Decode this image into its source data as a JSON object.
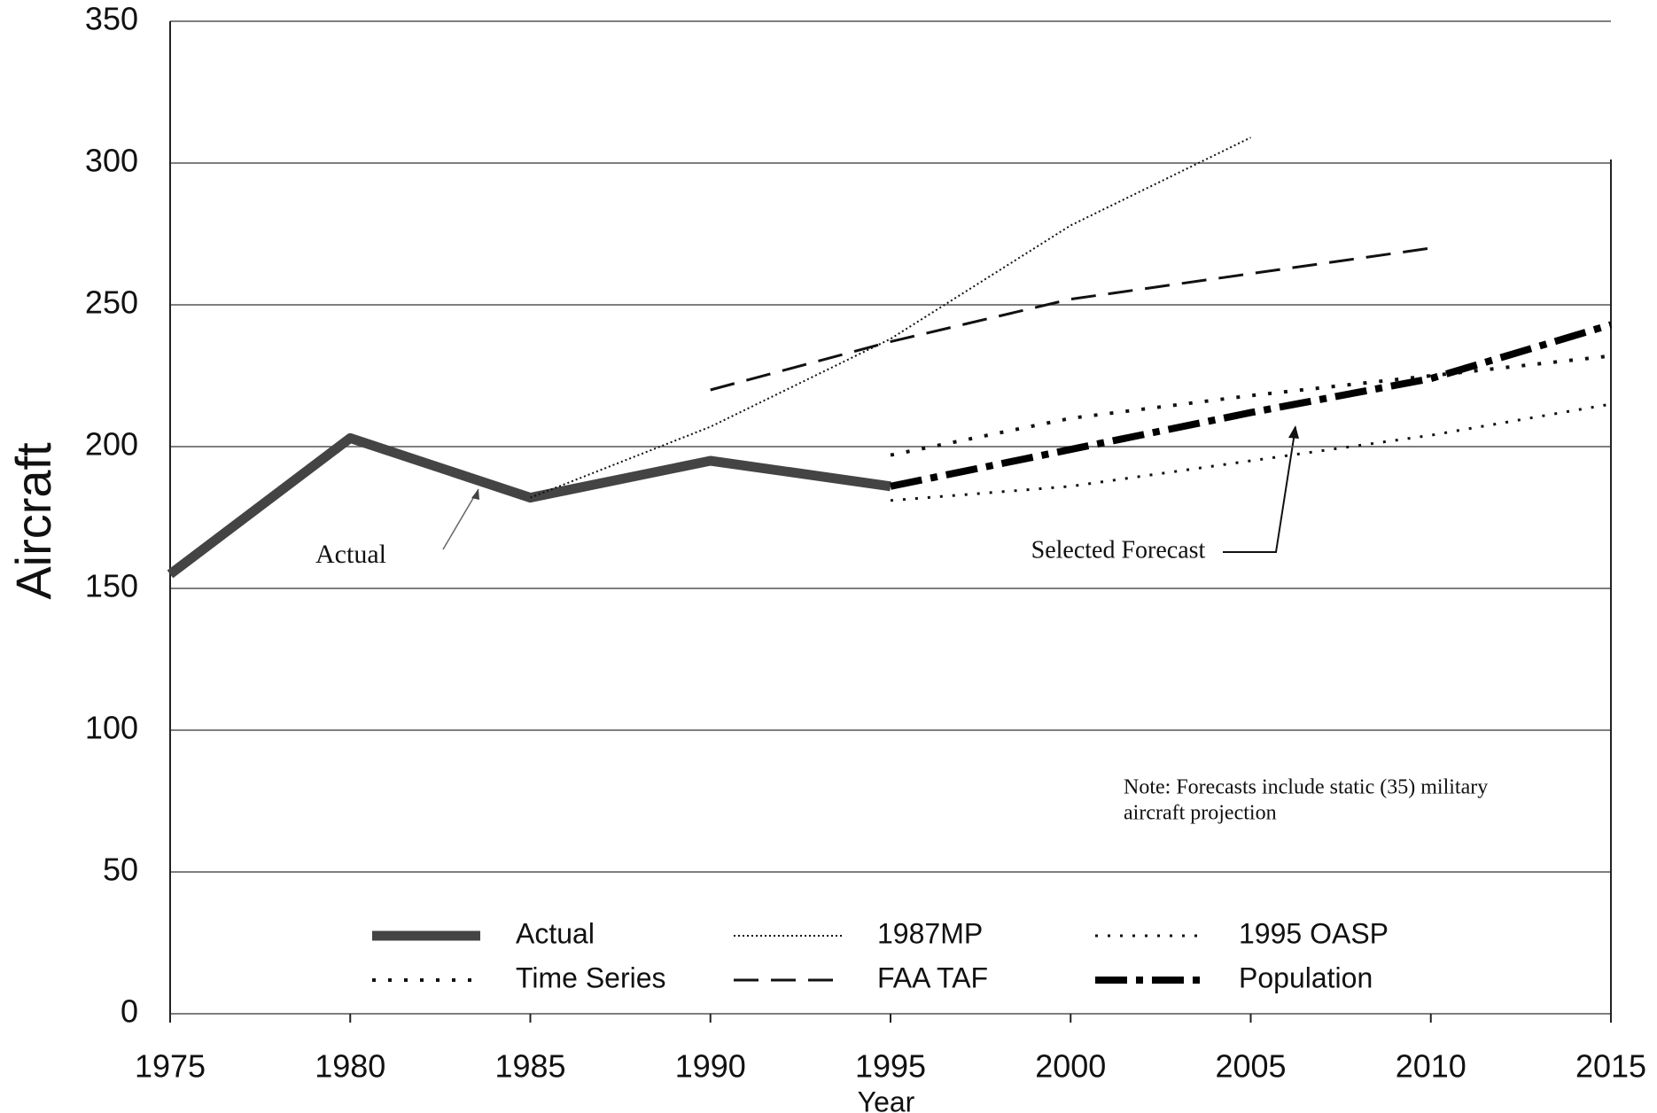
{
  "chart_data": {
    "type": "line",
    "y_label": "Aircraft",
    "x_label": "Year",
    "xlim": [
      1975,
      2015
    ],
    "xticks": [
      1975,
      1980,
      1985,
      1990,
      1995,
      2000,
      2005,
      2010,
      2015
    ],
    "ylim": [
      0,
      350
    ],
    "yticks": [
      0,
      50,
      100,
      150,
      200,
      250,
      300,
      350
    ],
    "grid": true,
    "series": [
      {
        "name": "Actual",
        "color": "#444444",
        "style": "thick",
        "x": [
          1975,
          1980,
          1985,
          1990,
          1995
        ],
        "values": [
          155,
          203,
          182,
          195,
          186
        ]
      },
      {
        "name": "1987MP",
        "color": "#111111",
        "style": "dotted",
        "x": [
          1985,
          1990,
          1995,
          2000,
          2005
        ],
        "values": [
          182,
          207,
          238,
          278,
          309
        ]
      },
      {
        "name": "1995 OASP",
        "color": "#111111",
        "style": "sparse-dotted",
        "x": [
          1995,
          2000,
          2005,
          2010,
          2015
        ],
        "values": [
          181,
          186,
          195,
          204,
          215
        ]
      },
      {
        "name": "Time Series",
        "color": "#111111",
        "style": "coarse-dotted",
        "x": [
          1995,
          2000,
          2005,
          2010,
          2015
        ],
        "values": [
          197,
          210,
          218,
          225,
          232
        ]
      },
      {
        "name": "FAA TAF",
        "color": "#111111",
        "style": "dashed",
        "x": [
          1990,
          1995,
          2000,
          2005,
          2010
        ],
        "values": [
          220,
          237,
          252,
          261,
          270
        ]
      },
      {
        "name": "Population",
        "color": "#000000",
        "style": "thick-dash-dot",
        "x": [
          1995,
          2000,
          2005,
          2010,
          2015
        ],
        "values": [
          186,
          199,
          212,
          224,
          243
        ]
      }
    ],
    "annotations": [
      "Actual",
      "Selected Forecast"
    ],
    "note": [
      "Note: Forecasts include static (35) military",
      "aircraft projection"
    ]
  }
}
